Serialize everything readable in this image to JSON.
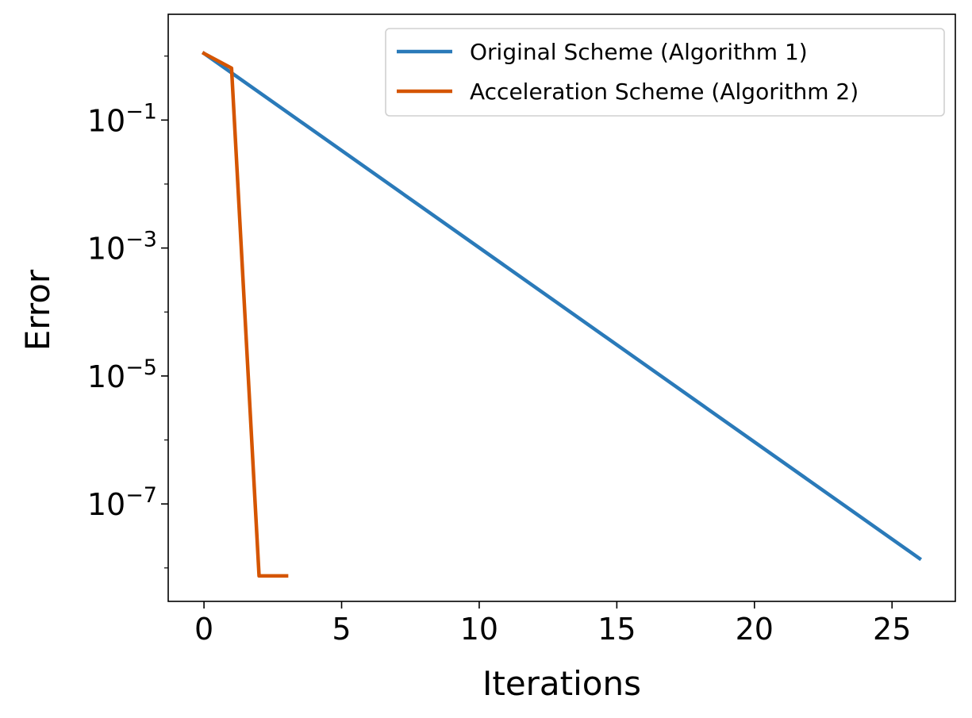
{
  "chart_data": {
    "type": "line",
    "xlabel": "Iterations",
    "ylabel": "Error",
    "x_scale": "linear",
    "y_scale": "log",
    "xlim": [
      -1.3,
      27.3
    ],
    "ylim": [
      3e-09,
      4.5
    ],
    "x_ticks": [
      {
        "value": 0,
        "label": "0"
      },
      {
        "value": 5,
        "label": "5"
      },
      {
        "value": 10,
        "label": "10"
      },
      {
        "value": 15,
        "label": "15"
      },
      {
        "value": 20,
        "label": "20"
      },
      {
        "value": 25,
        "label": "25"
      }
    ],
    "y_ticks": [
      {
        "value": 0.1,
        "base": "10",
        "exp": "−1"
      },
      {
        "value": 0.001,
        "base": "10",
        "exp": "−3"
      },
      {
        "value": 1e-05,
        "base": "10",
        "exp": "−5"
      },
      {
        "value": 1e-07,
        "base": "10",
        "exp": "−7"
      }
    ],
    "grid": false,
    "legend_position": "top-right",
    "series": [
      {
        "name": "Original Scheme (Algorithm 1)",
        "color": "#2a7ab9",
        "x": [
          0,
          26
        ],
        "y": [
          1.1,
          1.4e-08
        ]
      },
      {
        "name": "Acceleration Scheme (Algorithm 2)",
        "color": "#d55500",
        "x": [
          0,
          1,
          2,
          3
        ],
        "y": [
          1.1,
          0.65,
          7.5e-09,
          7.5e-09
        ]
      }
    ]
  }
}
